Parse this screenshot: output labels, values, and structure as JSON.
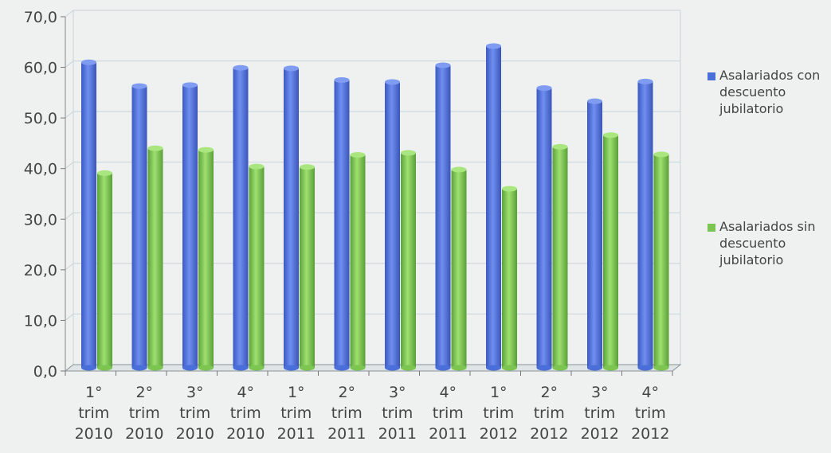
{
  "chart_data": {
    "type": "bar",
    "categories": [
      [
        "1°",
        "trim",
        "2010"
      ],
      [
        "2°",
        "trim",
        "2010"
      ],
      [
        "3°",
        "trim",
        "2010"
      ],
      [
        "4°",
        "trim",
        "2010"
      ],
      [
        "1°",
        "trim",
        "2011"
      ],
      [
        "2°",
        "trim",
        "2011"
      ],
      [
        "3°",
        "trim",
        "2011"
      ],
      [
        "4°",
        "trim",
        "2011"
      ],
      [
        "1°",
        "trim",
        "2012"
      ],
      [
        "2°",
        "trim",
        "2012"
      ],
      [
        "3°",
        "trim",
        "2012"
      ],
      [
        "4°",
        "trim",
        "2012"
      ]
    ],
    "series": [
      {
        "name": [
          "Asalariados con",
          "descuento",
          "jubilatorio"
        ],
        "color": "#4a6fd8",
        "values": [
          61.0,
          56.3,
          56.5,
          59.9,
          59.8,
          57.5,
          57.1,
          60.4,
          64.2,
          55.9,
          53.3,
          57.2
        ]
      },
      {
        "name": [
          "Asalariados sin",
          "descuento",
          "jubilatorio"
        ],
        "color": "#7cc552",
        "values": [
          39.1,
          44.0,
          43.7,
          40.4,
          40.3,
          42.7,
          43.1,
          39.8,
          36.0,
          44.3,
          46.6,
          42.8
        ]
      }
    ],
    "yticks": [
      "0,0",
      "10,0",
      "20,0",
      "30,0",
      "40,0",
      "50,0",
      "60,0",
      "70,0"
    ],
    "ylim": [
      0,
      70
    ],
    "grid": true,
    "legend": "right",
    "title": "",
    "xlabel": "",
    "ylabel": ""
  }
}
